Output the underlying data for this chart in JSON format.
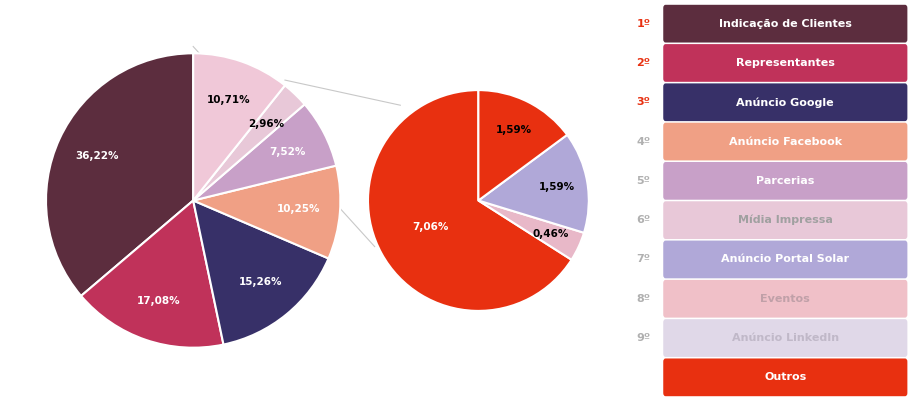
{
  "main_pie": {
    "labels": [
      "36,22%",
      "17,08%",
      "15,26%",
      "10,25%",
      "7,52%",
      "2,96%",
      "10,71%"
    ],
    "values": [
      36.22,
      17.08,
      15.26,
      10.25,
      7.52,
      2.96,
      10.71
    ],
    "colors": [
      "#5c2d3e",
      "#c0325a",
      "#373068",
      "#f0a085",
      "#c8a0c8",
      "#e8c8d8",
      "#f0c8d8"
    ],
    "startangle": 90,
    "label_colors": [
      "white",
      "white",
      "white",
      "white",
      "white",
      "black",
      "black"
    ]
  },
  "explode_pie": {
    "labels": [
      "7,06%",
      "0,46%",
      "1,59%",
      "1,59%"
    ],
    "values": [
      7.06,
      0.46,
      1.59,
      1.59
    ],
    "colors": [
      "#e83010",
      "#e8b8c8",
      "#b0a8d8",
      "#e83010"
    ],
    "startangle": 90,
    "label_colors": [
      "white",
      "black",
      "black",
      "black"
    ]
  },
  "legend_items": [
    {
      "rank": "1º",
      "label": "Indicação de Clientes",
      "color": "#5c2d3e",
      "text_color": "#ffffff",
      "rank_color": "#e83010"
    },
    {
      "rank": "2º",
      "label": "Representantes",
      "color": "#c0325a",
      "text_color": "#ffffff",
      "rank_color": "#e83010"
    },
    {
      "rank": "3º",
      "label": "Anúncio Google",
      "color": "#373068",
      "text_color": "#ffffff",
      "rank_color": "#e83010"
    },
    {
      "rank": "4º",
      "label": "Anúncio Facebook",
      "color": "#f0a085",
      "text_color": "#ffffff",
      "rank_color": "#b0b0b0"
    },
    {
      "rank": "5º",
      "label": "Parcerias",
      "color": "#c8a0c8",
      "text_color": "#ffffff",
      "rank_color": "#b0b0b0"
    },
    {
      "rank": "6º",
      "label": "Mídia Impressa",
      "color": "#e8c8d8",
      "text_color": "#a0a0a0",
      "rank_color": "#b0b0b0"
    },
    {
      "rank": "7º",
      "label": "Anúncio Portal Solar",
      "color": "#b0a8d8",
      "text_color": "#ffffff",
      "rank_color": "#b0b0b0"
    },
    {
      "rank": "8º",
      "label": "Eventos",
      "color": "#f0c0c8",
      "text_color": "#c0a0a8",
      "rank_color": "#b0b0b0"
    },
    {
      "rank": "9º",
      "label": "Anúncio LinkedIn",
      "color": "#e0d8e8",
      "text_color": "#c0b8c8",
      "rank_color": "#b0b0b0"
    },
    {
      "rank": "",
      "label": "Outros",
      "color": "#e83010",
      "text_color": "#ffffff",
      "rank_color": null
    }
  ],
  "background_color": "#ffffff"
}
